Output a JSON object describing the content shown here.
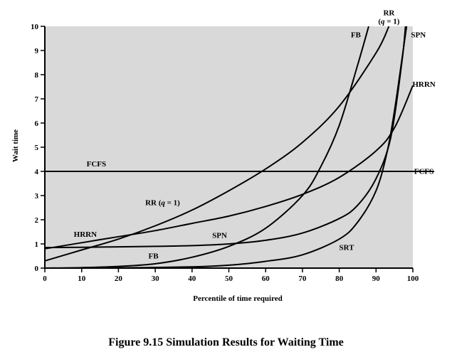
{
  "chart_data": {
    "type": "line",
    "title": "",
    "xlabel": "Percentile of time required",
    "ylabel": "Wait time",
    "xlim": [
      0,
      100
    ],
    "ylim": [
      0,
      10
    ],
    "x_ticks": [
      0,
      10,
      20,
      30,
      40,
      50,
      60,
      70,
      80,
      90,
      100
    ],
    "y_ticks": [
      0,
      1,
      2,
      3,
      4,
      5,
      6,
      7,
      8,
      9,
      10
    ],
    "grid": false,
    "background": "#d9d9d9",
    "line_color": "#000000",
    "series": [
      {
        "name": "FCFS",
        "x": [
          0,
          100
        ],
        "y": [
          4,
          4
        ]
      },
      {
        "name": "RR (q = 1)",
        "x": [
          0,
          10,
          20,
          30,
          40,
          50,
          60,
          70,
          80,
          90,
          93.5
        ],
        "y": [
          0.3,
          0.75,
          1.2,
          1.75,
          2.4,
          3.2,
          4.1,
          5.2,
          6.7,
          8.9,
          10
        ]
      },
      {
        "name": "HRRN",
        "x": [
          0,
          10,
          20,
          30,
          40,
          50,
          60,
          70,
          80,
          90,
          95,
          100
        ],
        "y": [
          0.8,
          1.05,
          1.3,
          1.55,
          1.85,
          2.15,
          2.55,
          3.05,
          3.75,
          4.85,
          5.8,
          7.55
        ]
      },
      {
        "name": "SPN",
        "x": [
          0,
          10,
          20,
          30,
          40,
          50,
          60,
          70,
          80,
          85,
          90,
          94,
          97,
          98
        ],
        "y": [
          0.85,
          0.86,
          0.88,
          0.9,
          0.93,
          1.0,
          1.15,
          1.45,
          2.05,
          2.6,
          3.7,
          5.4,
          8.5,
          10
        ]
      },
      {
        "name": "FB",
        "x": [
          0,
          10,
          20,
          30,
          40,
          50,
          60,
          70,
          75,
          80,
          85,
          88
        ],
        "y": [
          0,
          0.02,
          0.07,
          0.18,
          0.45,
          0.9,
          1.65,
          3.0,
          4.2,
          5.9,
          8.4,
          10
        ]
      },
      {
        "name": "SRT",
        "x": [
          0,
          20,
          40,
          50,
          60,
          70,
          80,
          85,
          90,
          93,
          95,
          97,
          98.3
        ],
        "y": [
          0,
          0.01,
          0.05,
          0.12,
          0.28,
          0.55,
          1.2,
          1.9,
          3.2,
          4.8,
          6.5,
          8.6,
          10
        ]
      }
    ],
    "annotations": [
      {
        "text": "FCFS",
        "x": 14,
        "y": 4.2
      },
      {
        "text": "FCFS",
        "x": 103,
        "y": 3.9
      },
      {
        "text": "RR (q = 1)",
        "x": 32,
        "y": 2.6
      },
      {
        "text": "RR",
        "x": 93.5,
        "y": 10.45
      },
      {
        "text": "(q = 1)",
        "x": 93.5,
        "y": 10.1
      },
      {
        "text": "HRRN",
        "x": 11,
        "y": 1.3
      },
      {
        "text": "HRRN",
        "x": 103,
        "y": 7.5
      },
      {
        "text": "SPN",
        "x": 47.5,
        "y": 1.25
      },
      {
        "text": "SPN",
        "x": 101.5,
        "y": 9.55
      },
      {
        "text": "FB",
        "x": 29.5,
        "y": 0.4
      },
      {
        "text": "FB",
        "x": 84.5,
        "y": 9.55
      },
      {
        "text": "SRT",
        "x": 82,
        "y": 0.75
      }
    ]
  },
  "caption": "Figure 9.15  Simulation Results for Waiting Time"
}
